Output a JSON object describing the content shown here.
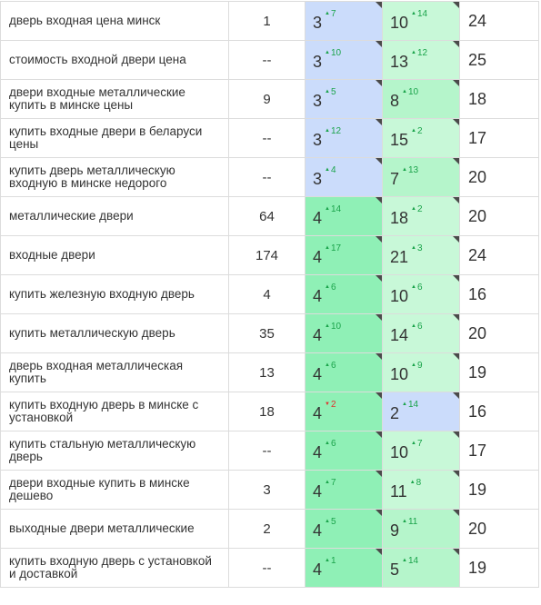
{
  "colors": {
    "blue": "#cbdcfb",
    "green": "#8ff0b6",
    "light_green": "#c8f8d8",
    "mid_green": "#b5f5cb",
    "up": "#1aa34a",
    "down": "#e0312d"
  },
  "rows": [
    {
      "keyword": "дверь входная цена минск",
      "frequency": "1",
      "pos1": "3",
      "delta1": "7",
      "dir1": "up",
      "bg1": "c-blue",
      "pos2": "10",
      "delta2": "14",
      "dir2": "up",
      "bg2": "c-light",
      "total": "24"
    },
    {
      "keyword": "стоимость входной двери цена",
      "frequency": "--",
      "pos1": "3",
      "delta1": "10",
      "dir1": "up",
      "bg1": "c-blue",
      "pos2": "13",
      "delta2": "12",
      "dir2": "up",
      "bg2": "c-light",
      "total": "25"
    },
    {
      "keyword": "двери входные металлические купить в минске цены",
      "frequency": "9",
      "pos1": "3",
      "delta1": "5",
      "dir1": "up",
      "bg1": "c-blue",
      "pos2": "8",
      "delta2": "10",
      "dir2": "up",
      "bg2": "c-mid",
      "total": "18"
    },
    {
      "keyword": "купить входные двери в беларуси цены",
      "frequency": "--",
      "pos1": "3",
      "delta1": "12",
      "dir1": "up",
      "bg1": "c-blue",
      "pos2": "15",
      "delta2": "2",
      "dir2": "up",
      "bg2": "c-light",
      "total": "17"
    },
    {
      "keyword": "купить дверь металлическую входную в минске недорого",
      "frequency": "--",
      "pos1": "3",
      "delta1": "4",
      "dir1": "up",
      "bg1": "c-blue",
      "pos2": "7",
      "delta2": "13",
      "dir2": "up",
      "bg2": "c-mid",
      "total": "20"
    },
    {
      "keyword": "металлические двери",
      "frequency": "64",
      "pos1": "4",
      "delta1": "14",
      "dir1": "up",
      "bg1": "c-green",
      "pos2": "18",
      "delta2": "2",
      "dir2": "up",
      "bg2": "c-light",
      "total": "20"
    },
    {
      "keyword": "входные двери",
      "frequency": "174",
      "pos1": "4",
      "delta1": "17",
      "dir1": "up",
      "bg1": "c-green",
      "pos2": "21",
      "delta2": "3",
      "dir2": "up",
      "bg2": "c-light",
      "total": "24"
    },
    {
      "keyword": "купить железную входную дверь",
      "frequency": "4",
      "pos1": "4",
      "delta1": "6",
      "dir1": "up",
      "bg1": "c-green",
      "pos2": "10",
      "delta2": "6",
      "dir2": "up",
      "bg2": "c-light",
      "total": "16"
    },
    {
      "keyword": "купить металлическую дверь",
      "frequency": "35",
      "pos1": "4",
      "delta1": "10",
      "dir1": "up",
      "bg1": "c-green",
      "pos2": "14",
      "delta2": "6",
      "dir2": "up",
      "bg2": "c-light",
      "total": "20"
    },
    {
      "keyword": "дверь входная металлическая купить",
      "frequency": "13",
      "pos1": "4",
      "delta1": "6",
      "dir1": "up",
      "bg1": "c-green",
      "pos2": "10",
      "delta2": "9",
      "dir2": "up",
      "bg2": "c-light",
      "total": "19"
    },
    {
      "keyword": "купить входную дверь в минске с установкой",
      "frequency": "18",
      "pos1": "4",
      "delta1": "2",
      "dir1": "down",
      "bg1": "c-green",
      "pos2": "2",
      "delta2": "14",
      "dir2": "up",
      "bg2": "c-blue",
      "total": "16"
    },
    {
      "keyword": "купить стальную металлическую дверь",
      "frequency": "--",
      "pos1": "4",
      "delta1": "6",
      "dir1": "up",
      "bg1": "c-green",
      "pos2": "10",
      "delta2": "7",
      "dir2": "up",
      "bg2": "c-light",
      "total": "17"
    },
    {
      "keyword": "двери входные купить в минске дешево",
      "frequency": "3",
      "pos1": "4",
      "delta1": "7",
      "dir1": "up",
      "bg1": "c-green",
      "pos2": "11",
      "delta2": "8",
      "dir2": "up",
      "bg2": "c-light",
      "total": "19"
    },
    {
      "keyword": "выходные двери металлические",
      "frequency": "2",
      "pos1": "4",
      "delta1": "5",
      "dir1": "up",
      "bg1": "c-green",
      "pos2": "9",
      "delta2": "11",
      "dir2": "up",
      "bg2": "c-mid",
      "total": "20"
    },
    {
      "keyword": "купить входную дверь с установкой и доставкой",
      "frequency": "--",
      "pos1": "4",
      "delta1": "1",
      "dir1": "up",
      "bg1": "c-green",
      "pos2": "5",
      "delta2": "14",
      "dir2": "up",
      "bg2": "c-mid",
      "total": "19"
    }
  ]
}
